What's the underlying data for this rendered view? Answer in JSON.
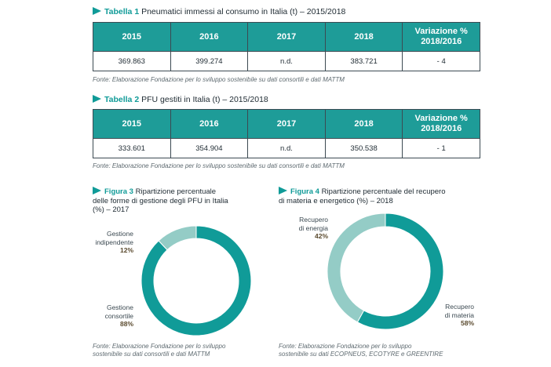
{
  "table1": {
    "label": "Tabella 1",
    "title": "Pneumatici immessi al consumo in Italia (t) – 2015/2018",
    "headers": [
      "2015",
      "2016",
      "2017",
      "2018",
      "Variazione %",
      "2018/2016"
    ],
    "row": [
      "369.863",
      "399.274",
      "n.d.",
      "383.721",
      "- 4"
    ],
    "source": "Fonte: Elaborazione Fondazione per lo sviluppo sostenibile su dati consortili e dati MATTM"
  },
  "table2": {
    "label": "Tabella 2",
    "title": "PFU gestiti in Italia (t) – 2015/2018",
    "headers": [
      "2015",
      "2016",
      "2017",
      "2018",
      "Variazione %",
      "2018/2016"
    ],
    "row": [
      "333.601",
      "354.904",
      "n.d.",
      "350.538",
      "- 1"
    ],
    "source": "Fonte: Elaborazione Fondazione per lo sviluppo sostenibile su dati consortili e dati MATTM"
  },
  "fig3": {
    "label": "Figura 3",
    "title_lines": [
      "Ripartizione percentuale",
      "delle forme di gestione degli PFU in Italia",
      "(%) – 2017"
    ],
    "source_lines": [
      "Fonte: Elaborazione Fondazione per lo sviluppo",
      "sostenibile su dati consortili e dati MATTM"
    ],
    "slices": [
      {
        "label_lines": [
          "Gestione",
          "indipendente"
        ],
        "pct": "12%",
        "value": 12,
        "color": "#94ccc6"
      },
      {
        "label_lines": [
          "Gestione",
          "consortile"
        ],
        "pct": "88%",
        "value": 88,
        "color": "#109b98"
      }
    ]
  },
  "fig4": {
    "label": "Figura 4",
    "title_lines": [
      "Ripartizione percentuale del recupero",
      "di materia e energetico (%) – 2018"
    ],
    "source_lines": [
      "Fonte: Elaborazione Fondazione per lo sviluppo",
      "sostenibile su dati ECOPNEUS, ECOTYRE e GREENTIRE"
    ],
    "slices": [
      {
        "label_lines": [
          "Recupero",
          "di materia"
        ],
        "pct": "58%",
        "value": 58,
        "color": "#109b98"
      },
      {
        "label_lines": [
          "Recupero",
          "di energia"
        ],
        "pct": "42%",
        "value": 42,
        "color": "#94ccc6"
      }
    ]
  },
  "chart_data": [
    {
      "type": "pie",
      "title": "Ripartizione percentuale delle forme di gestione degli PFU in Italia (%) – 2017",
      "categories": [
        "Gestione indipendente",
        "Gestione consortile"
      ],
      "values": [
        12,
        88
      ],
      "colors": [
        "#94ccc6",
        "#109b98"
      ]
    },
    {
      "type": "pie",
      "title": "Ripartizione percentuale del recupero di materia e energetico (%) – 2018",
      "categories": [
        "Recupero di materia",
        "Recupero di energia"
      ],
      "values": [
        58,
        42
      ],
      "colors": [
        "#109b98",
        "#94ccc6"
      ]
    }
  ]
}
